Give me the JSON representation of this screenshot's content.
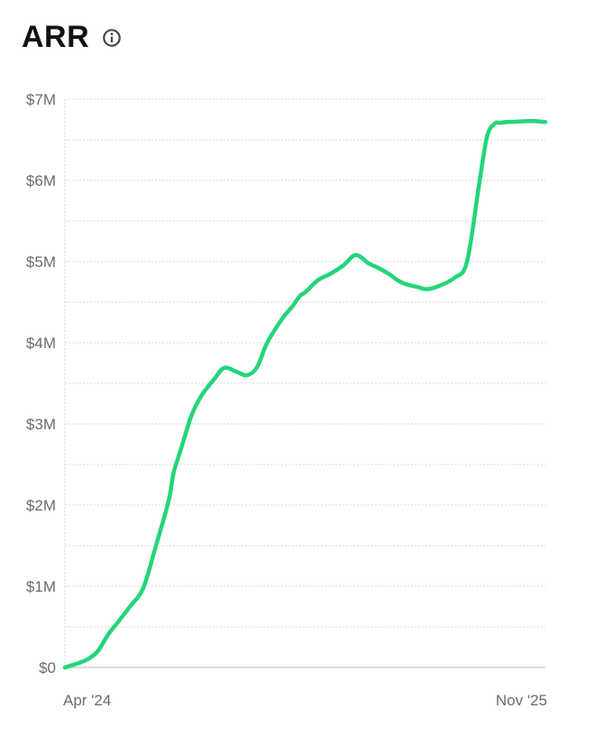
{
  "header": {
    "title": "ARR",
    "info_icon": "info-icon"
  },
  "colors": {
    "line": "#22d67a",
    "grid": "#d9d9d9",
    "axis": "#cfcfcf",
    "text": "#6b6b6b",
    "title": "#111111"
  },
  "chart_data": {
    "type": "line",
    "title": "ARR",
    "xlabel": "",
    "ylabel": "",
    "ylim": [
      0,
      7000000
    ],
    "y_ticks": [
      {
        "value": 0,
        "label": "$0"
      },
      {
        "value": 1000000,
        "label": "$1M"
      },
      {
        "value": 2000000,
        "label": "$2M"
      },
      {
        "value": 3000000,
        "label": "$3M"
      },
      {
        "value": 4000000,
        "label": "$4M"
      },
      {
        "value": 5000000,
        "label": "$5M"
      },
      {
        "value": 6000000,
        "label": "$6M"
      },
      {
        "value": 7000000,
        "label": "$7M"
      }
    ],
    "x_range": [
      0,
      19
    ],
    "x_ticks": [
      {
        "value": 0,
        "label": "Apr '24"
      },
      {
        "value": 19,
        "label": "Nov '25"
      }
    ],
    "grid": true,
    "series": [
      {
        "name": "ARR",
        "x": [
          0,
          0.5,
          0.9,
          1.3,
          1.7,
          2.1,
          2.6,
          3.1,
          3.6,
          4.1,
          4.3,
          4.6,
          5.0,
          5.4,
          5.9,
          6.3,
          6.8,
          7.2,
          7.6,
          8.0,
          8.6,
          9.0,
          9.3,
          9.5,
          10.0,
          10.5,
          11.0,
          11.5,
          12.0,
          12.4,
          12.8,
          13.2,
          13.5,
          13.9,
          14.3,
          14.8,
          15.4,
          15.9,
          16.4,
          16.7,
          17.0,
          17.2,
          17.5,
          17.9,
          18.3,
          18.6,
          19.0
        ],
        "values": [
          0,
          50000,
          100000,
          200000,
          400000,
          560000,
          760000,
          980000,
          1500000,
          2050000,
          2400000,
          2700000,
          3100000,
          3350000,
          3550000,
          3690000,
          3640000,
          3600000,
          3700000,
          4000000,
          4300000,
          4450000,
          4580000,
          4620000,
          4770000,
          4850000,
          4950000,
          5080000,
          4980000,
          4920000,
          4850000,
          4760000,
          4720000,
          4690000,
          4660000,
          4700000,
          4800000,
          5000000,
          6000000,
          6550000,
          6700000,
          6710000,
          6720000,
          6725000,
          6730000,
          6730000,
          6720000
        ]
      }
    ]
  }
}
